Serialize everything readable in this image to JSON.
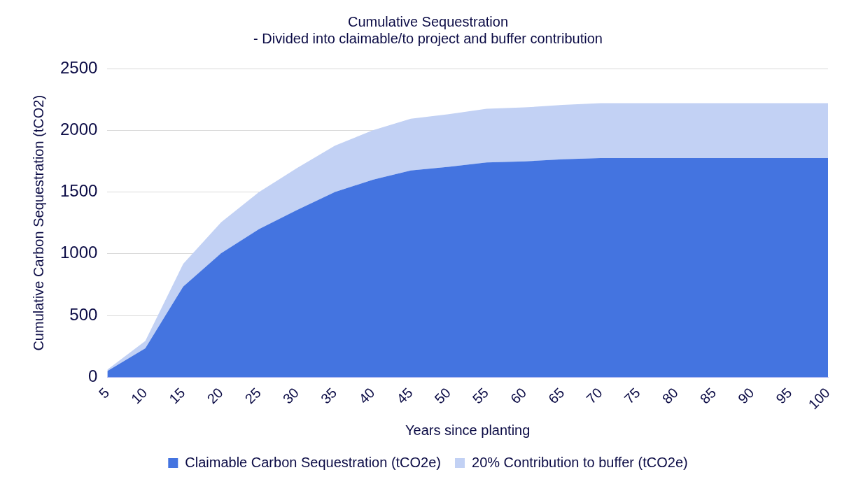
{
  "chart_data": {
    "type": "area",
    "title": [
      "Cumulative Sequestration",
      "- Divided into claimable/to project and buffer contribution"
    ],
    "xlabel": "Years since planting",
    "ylabel": "Cumulative Carbon Sequestration (tCO2)",
    "categories": [
      "5",
      "10",
      "15",
      "20",
      "25",
      "30",
      "35",
      "40",
      "45",
      "50",
      "55",
      "60",
      "65",
      "70",
      "75",
      "80",
      "85",
      "90",
      "95",
      "100"
    ],
    "stacked": true,
    "ylim": [
      0,
      2500
    ],
    "yticks": [
      0,
      500,
      1000,
      1500,
      2000,
      2500
    ],
    "grid": "y",
    "legend": "bottom",
    "series": [
      {
        "name": "Claimable Carbon Sequestration (tCO2e)",
        "color": "#4474e0",
        "values": [
          50,
          235,
          735,
          1005,
          1200,
          1355,
          1500,
          1600,
          1675,
          1705,
          1740,
          1748,
          1765,
          1775,
          1775,
          1775,
          1775,
          1775,
          1775,
          1775
        ]
      },
      {
        "name": "20% Contribution to buffer (tCO2e)",
        "color": "#c2d1f4",
        "values": [
          12,
          59,
          184,
          251,
          300,
          339,
          375,
          400,
          419,
          426,
          435,
          437,
          441,
          444,
          444,
          444,
          444,
          444,
          444,
          444
        ]
      }
    ]
  }
}
